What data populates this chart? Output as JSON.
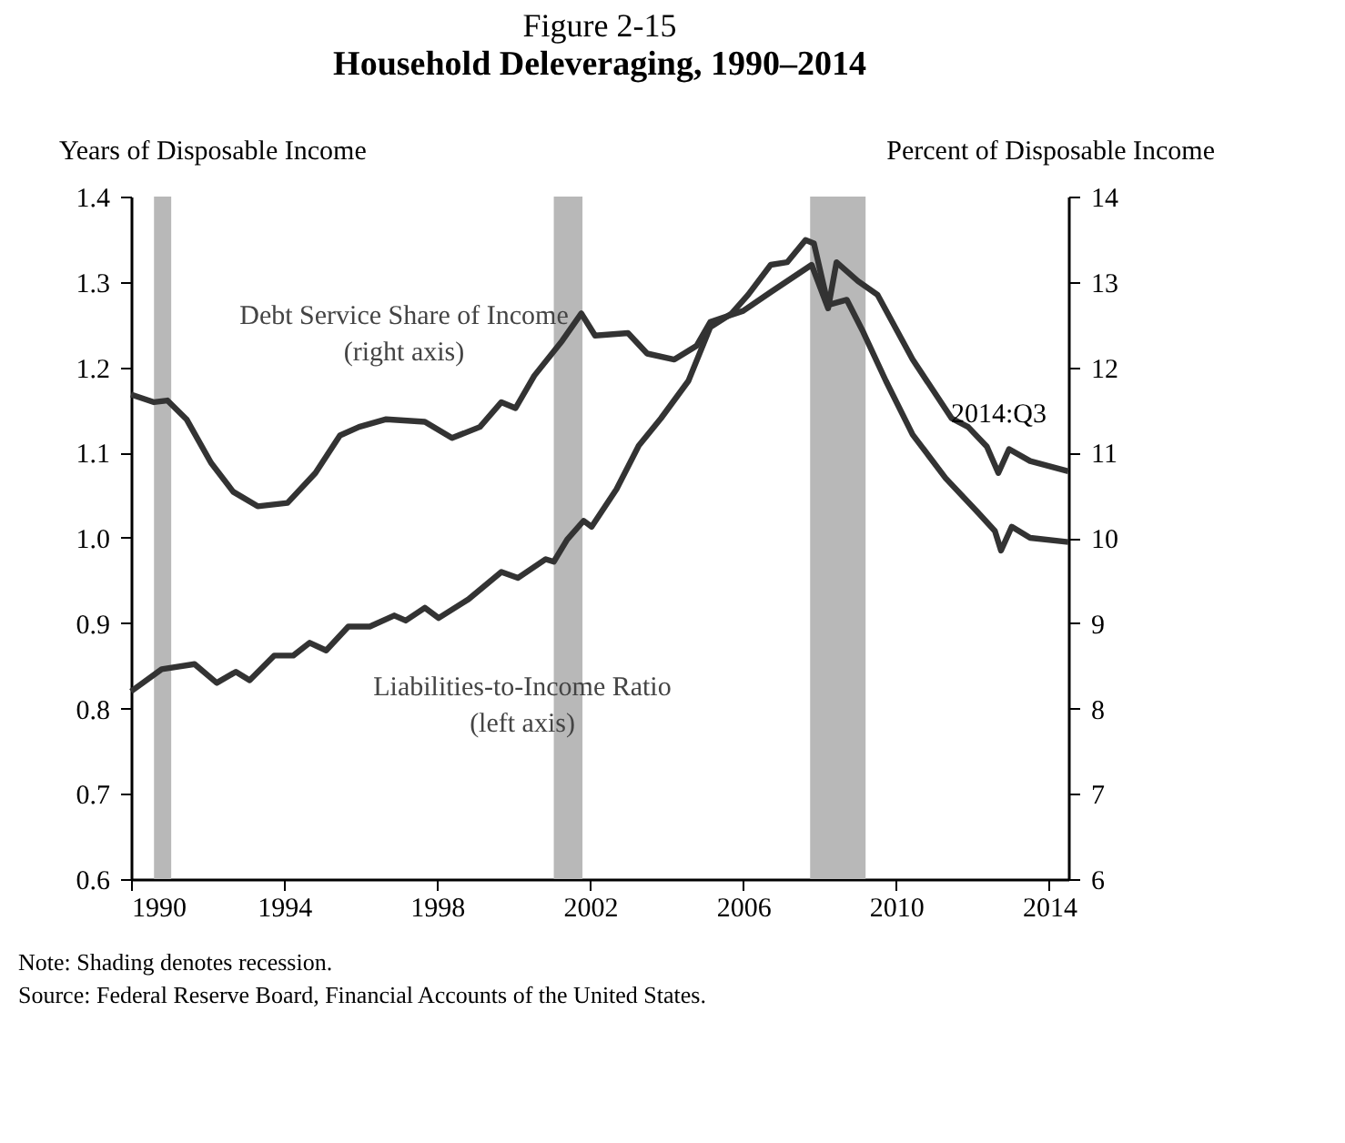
{
  "chart_data": {
    "type": "line",
    "title": "Figure 2-15",
    "subtitle": "Household Deleveraging, 1990–2014",
    "ylabel": "Years of Disposable Income",
    "y2label": "Percent of Disposable  Income",
    "xlim": [
      1990,
      2014.5
    ],
    "xticks": [
      1990,
      1994,
      1998,
      2002,
      2006,
      2010,
      2014
    ],
    "ylim": [
      0.6,
      1.4
    ],
    "yticks": [
      0.6,
      0.7,
      0.8,
      0.9,
      {
        "value": 1,
        "label": "1.0"
      },
      1.1,
      1.2,
      1.3,
      1.4
    ],
    "y2lim": [
      6,
      14
    ],
    "y2ticks": [
      6,
      7,
      8,
      9,
      10,
      11,
      12,
      13,
      14
    ],
    "grid": false,
    "line_style": "solid",
    "marker": "none",
    "series": [
      {
        "name": "Liabilities-to-Income Ratio (left axis)",
        "color": "#333333",
        "x": [
          1990,
          1990.8,
          1991.66,
          1992.24,
          1992.74,
          1993.1,
          1993.74,
          1994.24,
          1994.67,
          1995.1,
          1995.68,
          1996.24,
          1996.88,
          1997.18,
          1997.68,
          1998.04,
          1998.82,
          1999.68,
          2000.11,
          2000.84,
          2001.05,
          2001.4,
          2001.83,
          2002.04,
          2002.69,
          2003.27,
          2003.85,
          2004.57,
          2005.14,
          2005.7,
          2006.13,
          2006.72,
          2007.15,
          2007.63,
          2007.85,
          2008.22,
          2008.71,
          2009.14,
          2009.73,
          2010.43,
          2011.29,
          2012.15,
          2012.58,
          2012.74,
          2013.02,
          2013.5,
          2014.5
        ],
        "values": [
          0.82,
          0.846,
          0.852,
          0.83,
          0.843,
          0.833,
          0.862,
          0.862,
          0.877,
          0.868,
          0.896,
          0.896,
          0.909,
          0.903,
          0.918,
          0.906,
          0.928,
          0.96,
          0.953,
          0.975,
          0.972,
          0.998,
          1.02,
          1.013,
          1.057,
          1.108,
          1.14,
          1.184,
          1.247,
          1.263,
          1.285,
          1.32,
          1.323,
          1.349,
          1.345,
          1.273,
          1.279,
          1.241,
          1.184,
          1.121,
          1.07,
          1.029,
          1.008,
          0.985,
          1.013,
          1.0,
          0.995
        ]
      },
      {
        "name": "Debt Service Share of Income (right axis)",
        "color": "#333333",
        "axis": "y2",
        "x": [
          1990,
          1990.6,
          1990.95,
          1991.45,
          1992.09,
          1992.67,
          1993.31,
          1994.09,
          1994.82,
          1995.46,
          1995.96,
          1996.67,
          1997.68,
          1998.39,
          1999.12,
          1999.68,
          2000.05,
          2000.54,
          2001.27,
          2001.77,
          2002.13,
          2002.99,
          2003.49,
          2004.2,
          2004.78,
          2005.14,
          2006,
          2006.72,
          2007.79,
          2008.22,
          2008.44,
          2009,
          2009.51,
          2010.43,
          2011.45,
          2011.88,
          2012.37,
          2012.67,
          2012.95,
          2013.5,
          2014.5
        ],
        "values": [
          11.68,
          11.59,
          11.61,
          11.39,
          10.88,
          10.54,
          10.37,
          10.41,
          10.76,
          11.2,
          11.3,
          11.39,
          11.36,
          11.17,
          11.3,
          11.59,
          11.52,
          11.9,
          12.31,
          12.63,
          12.37,
          12.4,
          12.16,
          12.09,
          12.25,
          12.53,
          12.66,
          12.88,
          13.2,
          12.69,
          13.23,
          13.01,
          12.85,
          12.09,
          11.4,
          11.3,
          11.07,
          10.76,
          11.04,
          10.9,
          10.78
        ]
      }
    ],
    "bands": [
      {
        "axis": "x",
        "from": 1990.6,
        "to": 1991.05,
        "color": "#b8b8b8"
      },
      {
        "axis": "x",
        "from": 2001.05,
        "to": 2001.8,
        "color": "#b8b8b8"
      },
      {
        "axis": "x",
        "from": 2007.75,
        "to": 2009.2,
        "color": "#b8b8b8"
      }
    ],
    "annotations": [
      "2014:Q3",
      "Note: Shading denotes recession.",
      "Source: Federal Reserve Board, Financial Accounts of the United States."
    ]
  }
}
